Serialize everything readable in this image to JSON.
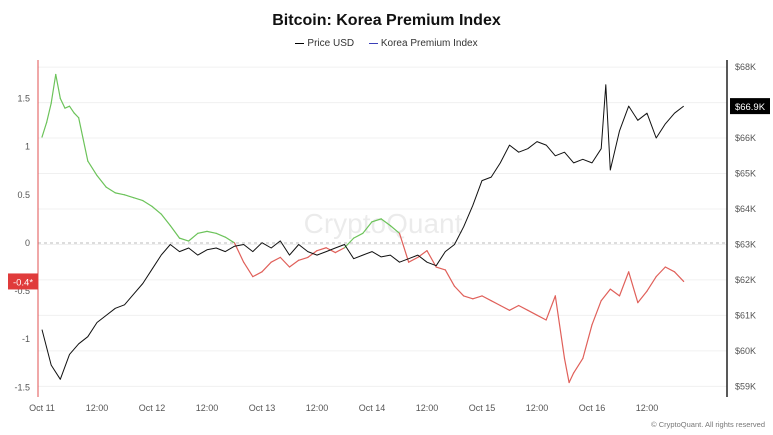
{
  "title": "Bitcoin: Korea Premium Index",
  "legend": [
    {
      "label": "Price USD",
      "color": "#000000"
    },
    {
      "label": "Korea Premium Index",
      "color": "#3b3fb8"
    }
  ],
  "colors": {
    "positive": "#6cc35a",
    "negative": "#e0605a",
    "price": "#111111",
    "zero_line": "#bbbbbb",
    "current_price_bg": "#000000",
    "current_premium_bg": "#e03b3b"
  },
  "copyright": "© CryptoQuant. All rights reserved",
  "watermark": "CryptoQuant",
  "current_premium_label": "-0.4*",
  "current_price_label": "$66.9K",
  "chart_data": {
    "type": "line",
    "x_tick_labels": [
      "Oct 11",
      "12:00",
      "Oct 12",
      "12:00",
      "Oct 13",
      "12:00",
      "Oct 14",
      "12:00",
      "Oct 15",
      "12:00",
      "Oct 16",
      "12:00"
    ],
    "x_range_hours": [
      0,
      144
    ],
    "left_axis": {
      "ticks": [
        1.5,
        1,
        0.5,
        0,
        -0.5,
        -1,
        -1.5
      ],
      "tick_labels": [
        "1.5",
        "1",
        "0.5",
        "0",
        "-0.5",
        "-1",
        "-1.5"
      ],
      "ylim": [
        -1.6,
        1.9
      ]
    },
    "right_axis": {
      "ticks": [
        68000,
        67000,
        66000,
        65000,
        64000,
        63000,
        62000,
        61000,
        60000,
        59000
      ],
      "tick_labels": [
        "$68K",
        "$67K",
        "$66K",
        "$65K",
        "$64K",
        "$63K",
        "$62K",
        "$61K",
        "$60K",
        "$59K"
      ],
      "ylim": [
        58700,
        68200
      ]
    },
    "series": [
      {
        "name": "Korea Premium Index",
        "axis": "left",
        "x": [
          0,
          1,
          2,
          3,
          4,
          5,
          6,
          7,
          8,
          10,
          12,
          14,
          16,
          18,
          20,
          22,
          24,
          26,
          28,
          30,
          32,
          34,
          36,
          38,
          40,
          42,
          44,
          46,
          48,
          50,
          52,
          54,
          56,
          58,
          60,
          62,
          64,
          66,
          68,
          70,
          72,
          74,
          76,
          78,
          80,
          82,
          84,
          86,
          88,
          90,
          92,
          94,
          96,
          98,
          100,
          102,
          104,
          106,
          108,
          110,
          112,
          114,
          115,
          116,
          118,
          120,
          122,
          124,
          126,
          128,
          130,
          132,
          134,
          136,
          138,
          140
        ],
        "values": [
          1.1,
          1.25,
          1.45,
          1.75,
          1.5,
          1.4,
          1.42,
          1.35,
          1.3,
          0.85,
          0.7,
          0.58,
          0.52,
          0.5,
          0.47,
          0.44,
          0.38,
          0.3,
          0.18,
          0.05,
          0.02,
          0.1,
          0.12,
          0.1,
          0.06,
          0.0,
          -0.2,
          -0.35,
          -0.3,
          -0.2,
          -0.15,
          -0.25,
          -0.18,
          -0.15,
          -0.08,
          -0.05,
          -0.1,
          -0.05,
          0.05,
          0.1,
          0.22,
          0.25,
          0.18,
          0.1,
          -0.2,
          -0.15,
          -0.08,
          -0.25,
          -0.28,
          -0.45,
          -0.55,
          -0.58,
          -0.55,
          -0.6,
          -0.65,
          -0.7,
          -0.65,
          -0.7,
          -0.75,
          -0.8,
          -0.55,
          -1.2,
          -1.45,
          -1.35,
          -1.2,
          -0.85,
          -0.6,
          -0.48,
          -0.55,
          -0.3,
          -0.62,
          -0.5,
          -0.35,
          -0.25,
          -0.3,
          -0.4
        ]
      },
      {
        "name": "Price USD",
        "axis": "right",
        "x": [
          0,
          2,
          4,
          6,
          8,
          10,
          12,
          14,
          16,
          18,
          20,
          22,
          24,
          26,
          28,
          30,
          32,
          34,
          36,
          38,
          40,
          42,
          44,
          46,
          48,
          50,
          52,
          54,
          56,
          58,
          60,
          62,
          64,
          66,
          68,
          70,
          72,
          74,
          76,
          78,
          80,
          82,
          84,
          86,
          88,
          90,
          92,
          94,
          96,
          98,
          100,
          102,
          104,
          106,
          108,
          110,
          112,
          114,
          116,
          118,
          120,
          122,
          123,
          124,
          126,
          128,
          130,
          132,
          134,
          136,
          138,
          140
        ],
        "values": [
          60600,
          59600,
          59200,
          59900,
          60200,
          60400,
          60800,
          61000,
          61200,
          61300,
          61600,
          61900,
          62300,
          62700,
          63000,
          62800,
          62900,
          62700,
          62850,
          62900,
          62800,
          62950,
          63000,
          62800,
          63050,
          62900,
          63100,
          62700,
          63000,
          62800,
          62700,
          62800,
          62900,
          63000,
          62600,
          62700,
          62800,
          62650,
          62700,
          62500,
          62600,
          62700,
          62500,
          62400,
          62800,
          63000,
          63500,
          64100,
          64800,
          64900,
          65300,
          65800,
          65600,
          65700,
          65900,
          65800,
          65500,
          65600,
          65300,
          65400,
          65300,
          65700,
          67500,
          65100,
          66200,
          66900,
          66500,
          66700,
          66000,
          66400,
          66700,
          66900
        ]
      }
    ]
  }
}
